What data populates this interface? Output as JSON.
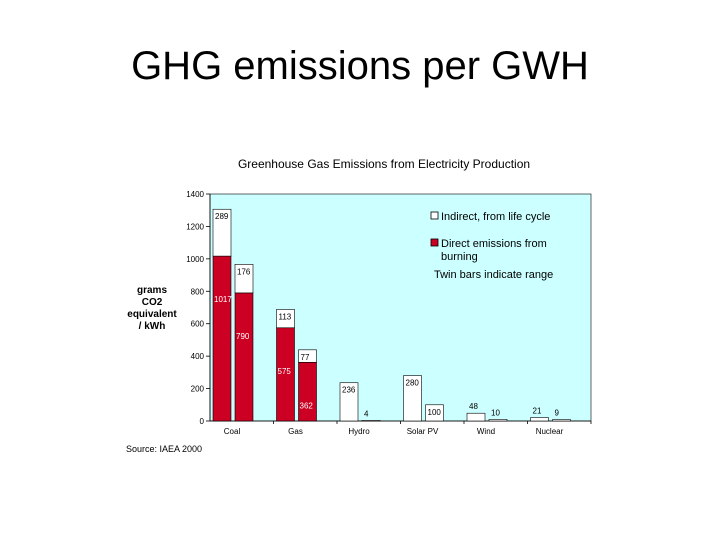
{
  "slide": {
    "title": "GHG emissions per GWH"
  },
  "chart_data": {
    "type": "bar",
    "stacked": true,
    "title": "Greenhouse Gas Emissions from Electricity Production",
    "ylabel_lines": [
      "grams",
      "CO2",
      "equivalent",
      "/ kWh"
    ],
    "ylim": [
      0,
      1400
    ],
    "yticks": [
      0,
      200,
      400,
      600,
      800,
      1000,
      1200,
      1400
    ],
    "categories": [
      "Coal",
      "Gas",
      "Hydro",
      "Solar PV",
      "Wind",
      "Nuclear"
    ],
    "bars": [
      {
        "category": "Coal",
        "direct": 1017,
        "indirect": 289,
        "label_direct": "1017",
        "label_indirect": "289"
      },
      {
        "category": "Coal",
        "direct": 790,
        "indirect": 176,
        "label_direct": "790",
        "label_indirect": "176"
      },
      {
        "category": "Gas",
        "direct": 575,
        "indirect": 113,
        "label_direct": "575",
        "label_indirect": "113"
      },
      {
        "category": "Gas",
        "direct": 362,
        "indirect": 77,
        "label_direct": "362",
        "label_indirect": "77"
      },
      {
        "category": "Hydro",
        "direct": 0,
        "indirect": 236,
        "label_direct": "",
        "label_indirect": "236"
      },
      {
        "category": "Hydro",
        "direct": 0,
        "indirect": 4,
        "label_direct": "",
        "label_indirect": "4"
      },
      {
        "category": "Solar PV",
        "direct": 0,
        "indirect": 280,
        "label_direct": "",
        "label_indirect": "280"
      },
      {
        "category": "Solar PV",
        "direct": 0,
        "indirect": 100,
        "label_direct": "",
        "label_indirect": "100"
      },
      {
        "category": "Wind",
        "direct": 0,
        "indirect": 48,
        "label_direct": "",
        "label_indirect": "48"
      },
      {
        "category": "Wind",
        "direct": 0,
        "indirect": 10,
        "label_direct": "",
        "label_indirect": "10"
      },
      {
        "category": "Nuclear",
        "direct": 0,
        "indirect": 21,
        "label_direct": "",
        "label_indirect": "21"
      },
      {
        "category": "Nuclear",
        "direct": 0,
        "indirect": 9,
        "label_direct": "",
        "label_indirect": "9"
      }
    ],
    "legend": {
      "placement": "top-right",
      "indirect": "Indirect, from life cycle",
      "direct_lines": [
        "Direct emissions from",
        "burning"
      ],
      "note": "Twin bars indicate range"
    },
    "source": "Source: IAEA 2000",
    "colors": {
      "direct": "#cc0022",
      "indirect": "#ffffff",
      "plot_background": "#ccffff",
      "bar_outline": "#000000"
    }
  }
}
